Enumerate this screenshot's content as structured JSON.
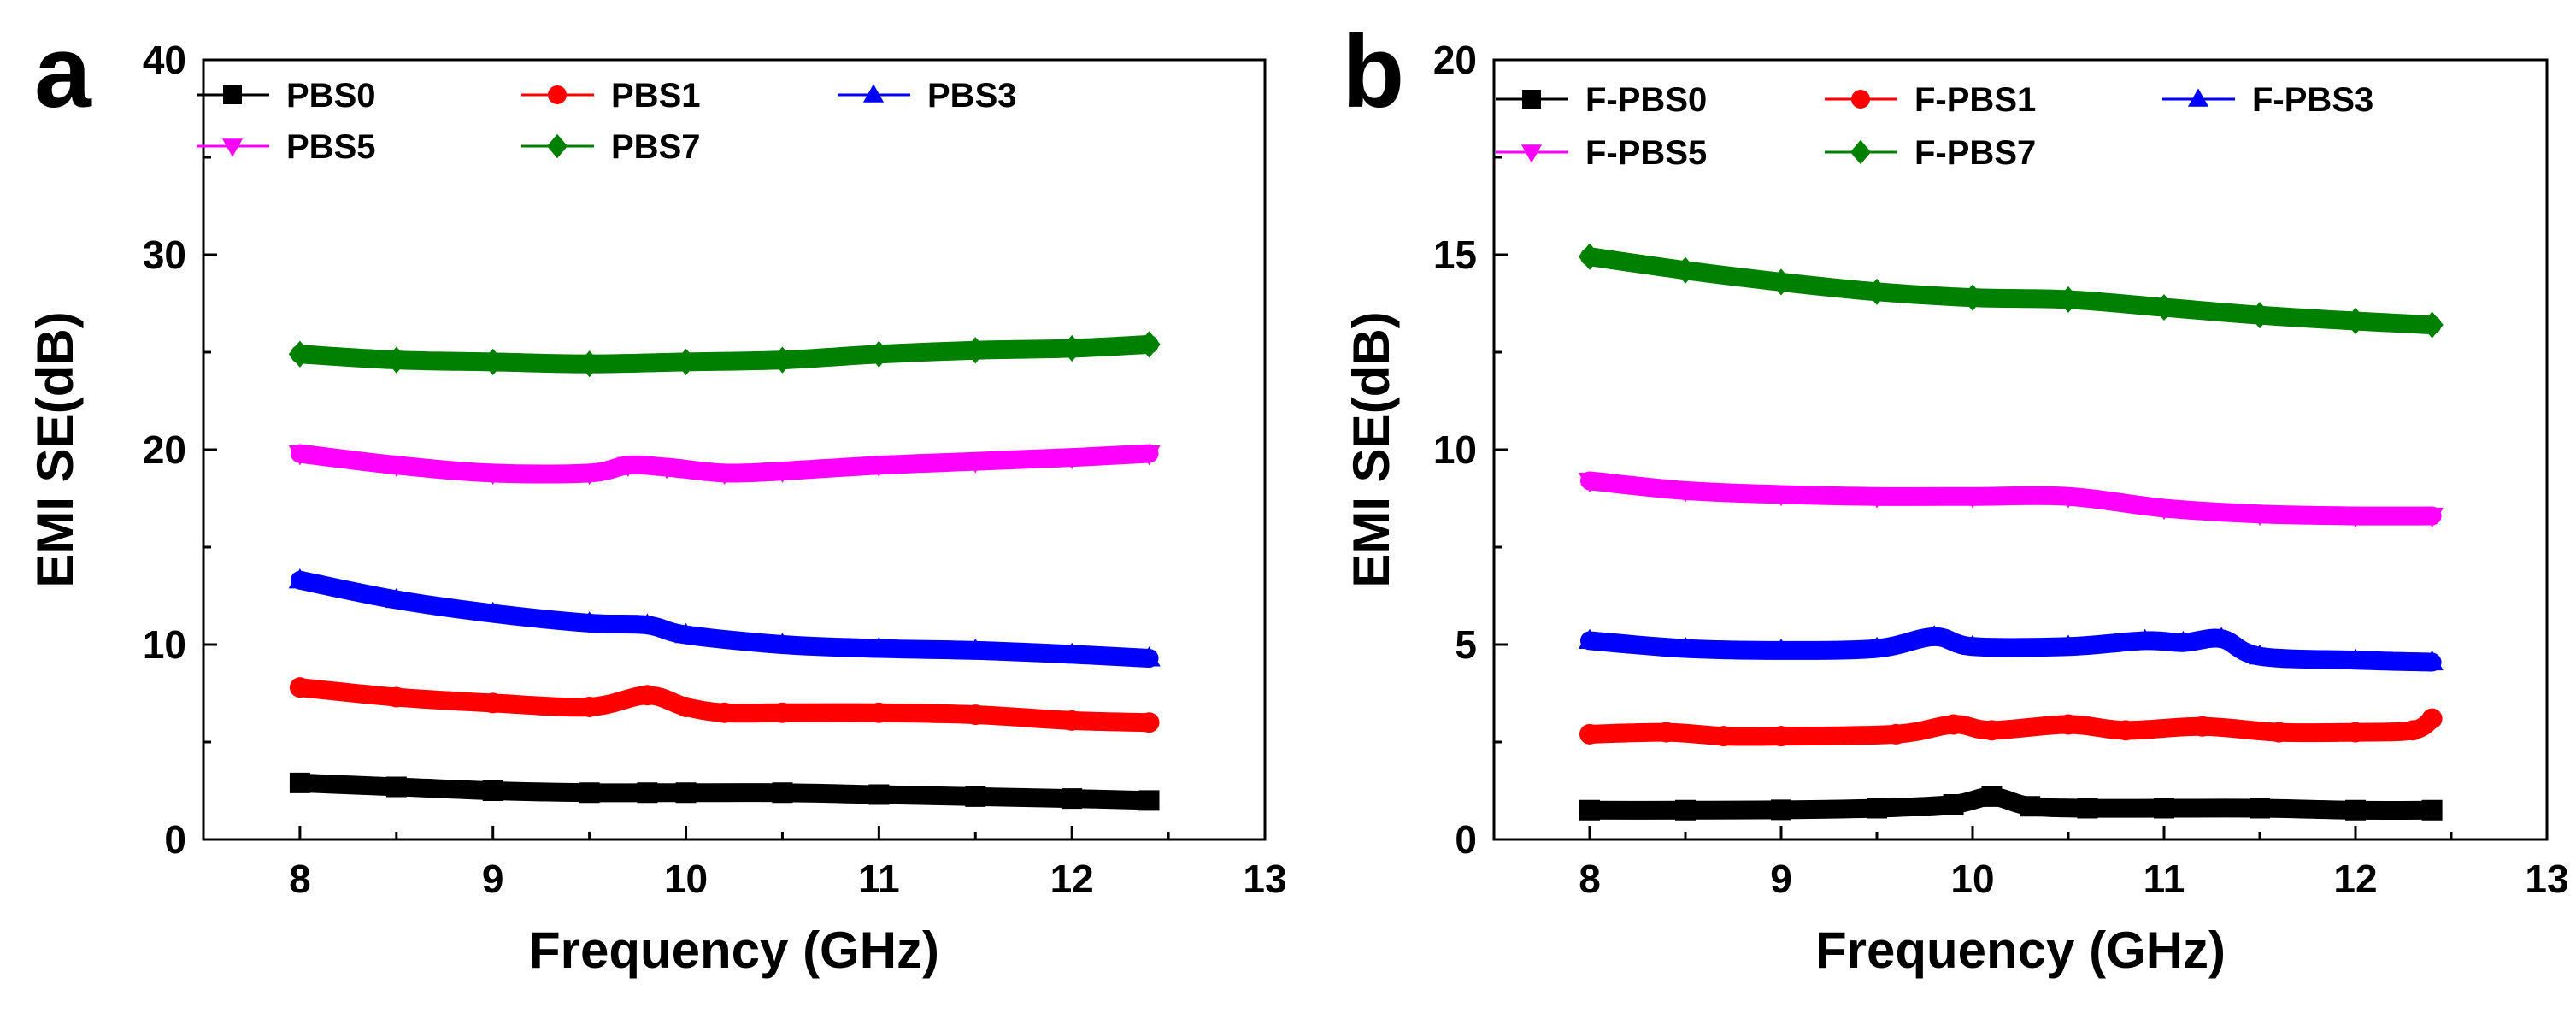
{
  "chart_data": [
    {
      "type": "line",
      "panel_label": "a",
      "xlabel": "Frequency (GHz)",
      "ylabel": "EMI SE(dB)",
      "xlim": [
        7.5,
        13
      ],
      "ylim": [
        0,
        40
      ],
      "xticks": [
        8,
        9,
        10,
        11,
        12,
        13
      ],
      "yticks": [
        0,
        10,
        20,
        30,
        40
      ],
      "grid": false,
      "legend_position": "top, 3 columns",
      "series": [
        {
          "name": "PBS0",
          "color": "#000000",
          "marker": "square",
          "x": [
            8.0,
            8.5,
            9.0,
            9.5,
            9.8,
            10.0,
            10.5,
            11.0,
            11.5,
            12.0,
            12.4
          ],
          "y": [
            2.9,
            2.7,
            2.5,
            2.4,
            2.4,
            2.4,
            2.4,
            2.3,
            2.2,
            2.1,
            2.0
          ]
        },
        {
          "name": "PBS1",
          "color": "#ff0000",
          "marker": "circle",
          "x": [
            8.0,
            8.5,
            9.0,
            9.5,
            9.8,
            10.0,
            10.2,
            10.5,
            11.0,
            11.5,
            12.0,
            12.4
          ],
          "y": [
            7.8,
            7.3,
            7.0,
            6.8,
            7.4,
            6.8,
            6.5,
            6.5,
            6.5,
            6.4,
            6.1,
            6.0
          ]
        },
        {
          "name": "PBS3",
          "color": "#0000ff",
          "marker": "triangle-up",
          "x": [
            8.0,
            8.5,
            9.0,
            9.5,
            9.8,
            10.0,
            10.5,
            11.0,
            11.5,
            12.0,
            12.4
          ],
          "y": [
            13.3,
            12.3,
            11.6,
            11.1,
            11.0,
            10.5,
            10.0,
            9.8,
            9.7,
            9.5,
            9.3
          ]
        },
        {
          "name": "PBS5",
          "color": "#ff00ff",
          "marker": "triangle-down",
          "x": [
            8.0,
            8.5,
            9.0,
            9.5,
            9.7,
            9.9,
            10.2,
            10.5,
            11.0,
            11.5,
            12.0,
            12.4
          ],
          "y": [
            19.8,
            19.2,
            18.8,
            18.8,
            19.2,
            19.1,
            18.8,
            18.9,
            19.2,
            19.4,
            19.6,
            19.8
          ]
        },
        {
          "name": "PBS7",
          "color": "#008000",
          "marker": "diamond",
          "x": [
            8.0,
            8.5,
            9.0,
            9.5,
            10.0,
            10.5,
            11.0,
            11.5,
            12.0,
            12.4
          ],
          "y": [
            24.9,
            24.6,
            24.5,
            24.4,
            24.5,
            24.6,
            24.9,
            25.1,
            25.2,
            25.4
          ]
        }
      ]
    },
    {
      "type": "line",
      "panel_label": "b",
      "xlabel": "Frequency (GHz)",
      "ylabel": "EMI SE(dB)",
      "xlim": [
        7.5,
        13
      ],
      "ylim": [
        0,
        20
      ],
      "xticks": [
        8,
        9,
        10,
        11,
        12,
        13
      ],
      "yticks": [
        0,
        5,
        10,
        15,
        20
      ],
      "grid": false,
      "legend_position": "top, 3 columns",
      "series": [
        {
          "name": "F-PBS0",
          "color": "#000000",
          "marker": "square",
          "x": [
            8.0,
            8.5,
            9.0,
            9.5,
            9.9,
            10.1,
            10.3,
            10.6,
            11.0,
            11.5,
            12.0,
            12.4
          ],
          "y": [
            0.75,
            0.75,
            0.76,
            0.8,
            0.9,
            1.1,
            0.85,
            0.8,
            0.8,
            0.8,
            0.75,
            0.75
          ]
        },
        {
          "name": "F-PBS1",
          "color": "#ff0000",
          "marker": "circle",
          "x": [
            8.0,
            8.4,
            8.7,
            9.0,
            9.6,
            9.9,
            10.1,
            10.5,
            10.8,
            11.2,
            11.6,
            12.0,
            12.3,
            12.4
          ],
          "y": [
            2.7,
            2.75,
            2.65,
            2.65,
            2.7,
            2.95,
            2.8,
            2.95,
            2.8,
            2.9,
            2.75,
            2.75,
            2.8,
            3.1
          ]
        },
        {
          "name": "F-PBS3",
          "color": "#0000ff",
          "marker": "triangle-up",
          "x": [
            8.0,
            8.5,
            9.0,
            9.5,
            9.8,
            10.0,
            10.5,
            10.9,
            11.1,
            11.3,
            11.5,
            12.0,
            12.4
          ],
          "y": [
            5.1,
            4.9,
            4.85,
            4.9,
            5.2,
            4.95,
            4.95,
            5.1,
            5.05,
            5.15,
            4.7,
            4.6,
            4.55
          ]
        },
        {
          "name": "F-PBS5",
          "color": "#ff00ff",
          "marker": "triangle-down",
          "x": [
            8.0,
            8.5,
            9.0,
            9.5,
            10.0,
            10.5,
            11.0,
            11.5,
            12.0,
            12.4
          ],
          "y": [
            9.2,
            8.95,
            8.85,
            8.8,
            8.8,
            8.8,
            8.5,
            8.35,
            8.3,
            8.3
          ]
        },
        {
          "name": "F-PBS7",
          "color": "#008000",
          "marker": "diamond",
          "x": [
            8.0,
            8.5,
            9.0,
            9.5,
            10.0,
            10.5,
            11.0,
            11.5,
            12.0,
            12.4
          ],
          "y": [
            14.95,
            14.6,
            14.3,
            14.05,
            13.9,
            13.85,
            13.65,
            13.45,
            13.3,
            13.2
          ]
        }
      ]
    }
  ]
}
